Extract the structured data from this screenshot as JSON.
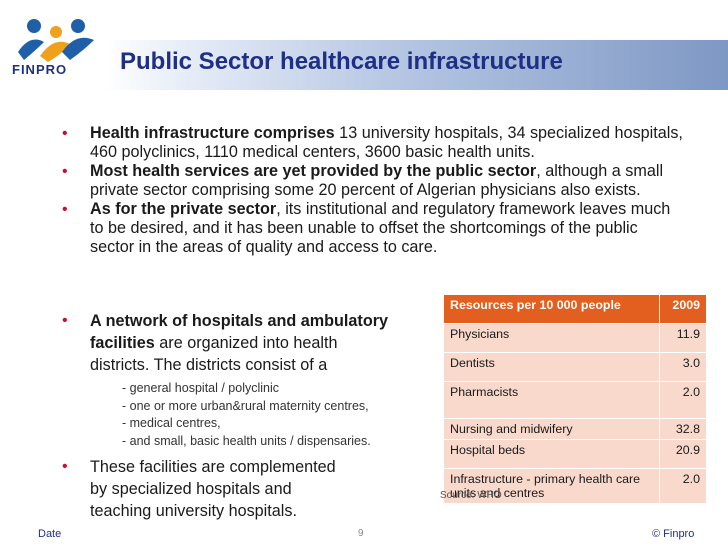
{
  "header": {
    "title": "Public Sector healthcare infrastructure",
    "logo_text": "FINPRO"
  },
  "bullets": [
    {
      "bold": "Health infrastructure comprises",
      "text": " 13 university hospitals, 34 specialized hospitals, 460 polyclinics, 1110 medical centers, 3600 basic health units."
    },
    {
      "bold": "Most health services are yet provided by the public sector",
      "text": ", although a small private sector comprising some 20 percent of Algerian physicians also exists."
    },
    {
      "bold": "As for the private sector",
      "text": ", its institutional and regulatory framework leaves much to be desired, and it has been unable to offset the shortcomings of the public sector in the areas of quality and access to care."
    }
  ],
  "network": {
    "bold": "A network of hospitals and ambulatory facilities",
    "text": " are organized into health",
    "line3": "districts. The districts consist of a",
    "subitems": [
      "- general hospital / polyclinic",
      "- one or more urban&rural maternity centres,",
      "- medical centres,",
      "- and small, basic health units / dispensaries."
    ]
  },
  "complement": {
    "line1": "These facilities are complemented",
    "line2": "by specialized hospitals and",
    "line3": "teaching university hospitals."
  },
  "table": {
    "header_label": "Resources per 10 000 people",
    "header_year": "2009",
    "rows": [
      {
        "label": "Physicians",
        "value": "11.9"
      },
      {
        "label": "Dentists",
        "value": "3.0"
      },
      {
        "label": "Pharmacists",
        "value": "2.0"
      },
      {
        "label": "Nursing and midwifery",
        "value": "32.8"
      },
      {
        "label": "Hospital beds",
        "value": "20.9"
      },
      {
        "label": "Infrastructure - primary health care units and centres",
        "value": "2.0"
      }
    ]
  },
  "source": "Source: WHO",
  "footer": {
    "date": "Date",
    "page": "9",
    "copyright": "© Finpro"
  },
  "colors": {
    "title": "#1f2f86",
    "table_header": "#e25f1f",
    "table_row": "#f8d9cc",
    "bullet": "#c8102e"
  }
}
